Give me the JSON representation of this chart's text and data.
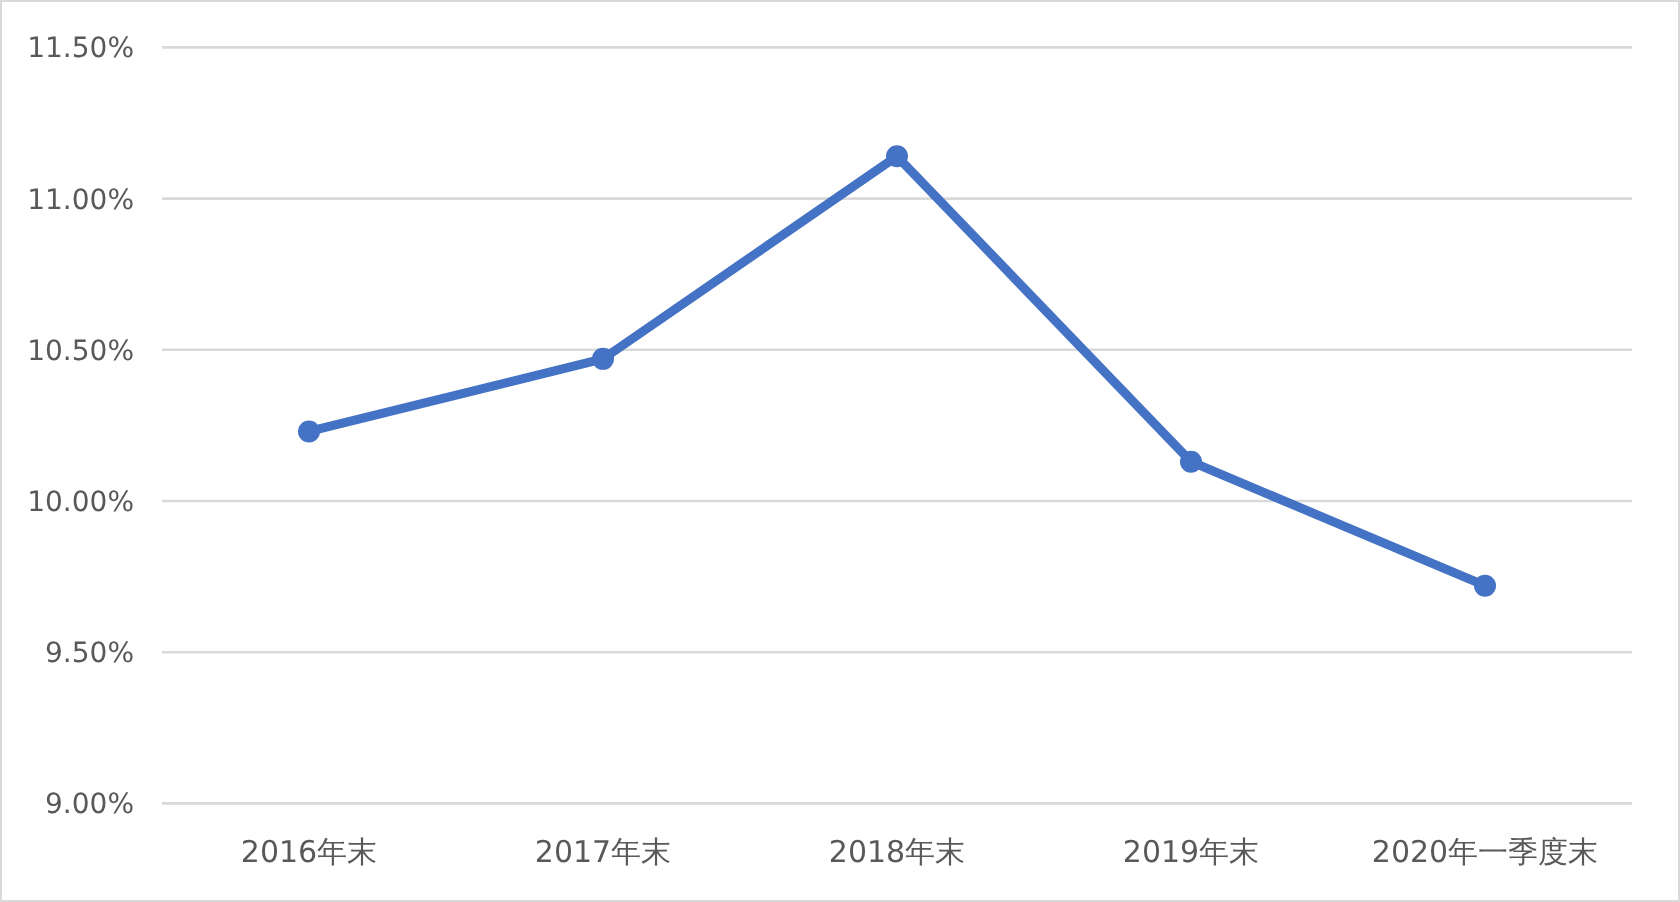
{
  "chart_data": {
    "type": "line",
    "categories": [
      "2016年末",
      "2017年末",
      "2018年末",
      "2019年末",
      "2020年一季度末"
    ],
    "series": [
      {
        "color": "#4472c4",
        "values": [
          10.23,
          10.47,
          11.14,
          10.13,
          9.72
        ]
      }
    ],
    "ylim": [
      9.0,
      11.5
    ],
    "yticks": [
      {
        "value": 9.0,
        "label": "9.00%"
      },
      {
        "value": 9.5,
        "label": "9.50%"
      },
      {
        "value": 10.0,
        "label": "10.00%"
      },
      {
        "value": 10.5,
        "label": "10.50%"
      },
      {
        "value": 11.0,
        "label": "11.00%"
      },
      {
        "value": 11.5,
        "label": "11.50%"
      }
    ],
    "grid": "y",
    "marker": "circle",
    "line_style": "solid"
  }
}
